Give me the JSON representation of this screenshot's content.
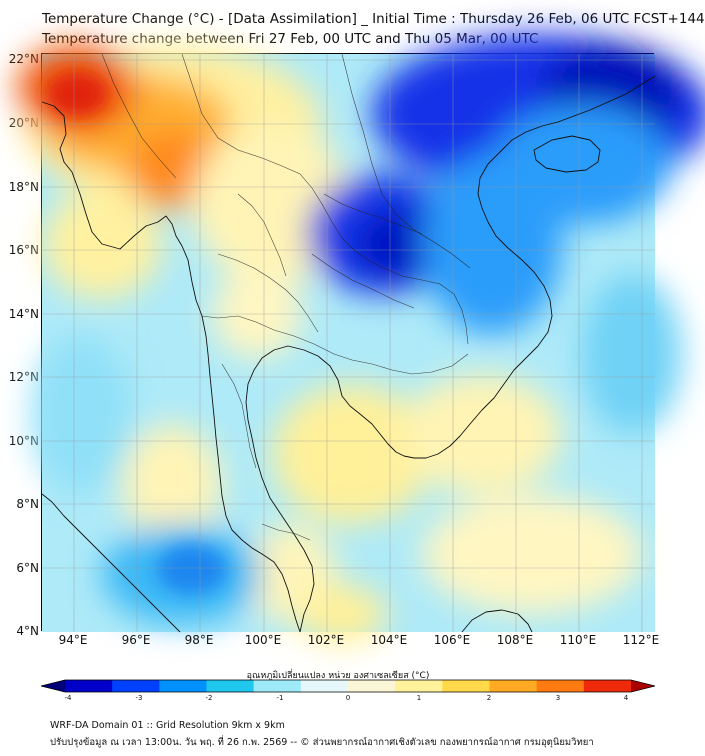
{
  "title_line1": "Temperature Change (°C) - [Data Assimilation] _ Initial Time : Thursday 26 Feb, 06 UTC FCST+144",
  "title_line2": "Temperature change between Fri 27 Feb, 00 UTC and Thu 05 Mar, 00 UTC",
  "lat_labels": [
    "22°N",
    "20°N",
    "18°N",
    "16°N",
    "14°N",
    "12°N",
    "10°N",
    "8°N",
    "6°N",
    "4°N"
  ],
  "lon_labels": [
    "94°E",
    "96°E",
    "98°E",
    "100°E",
    "102°E",
    "104°E",
    "106°E",
    "108°E",
    "110°E",
    "112°E"
  ],
  "colorbar": {
    "label": "อุณหภูมิเปลี่ยนแปลง หน่วย องศาเซลเซียส (°C)",
    "ticks": [
      "-4",
      "-3",
      "-2",
      "-1",
      "0",
      "1",
      "2",
      "3",
      "4"
    ],
    "colors": [
      "#00007a",
      "#0000c8",
      "#0040ff",
      "#0090ff",
      "#20c8f0",
      "#9eeaf8",
      "#e6f8fb",
      "#fbf7d6",
      "#fff29a",
      "#ffd94a",
      "#ffaa22",
      "#ff7a10",
      "#ee2a0a",
      "#aa0000"
    ]
  },
  "footer_line1": "WRF-DA Domain 01 :: Grid Resolution 9km x 9km",
  "footer_line2": "ปรับปรุงข้อมูล ณ เวลา 13:00น. วัน พฤ. ที่ 26 ก.พ. 2569 -- © ส่วนพยากรณ์อากาศเชิงตัวเลข กองพยากรณ์อากาศ กรมอุตุนิยมวิทยา"
}
